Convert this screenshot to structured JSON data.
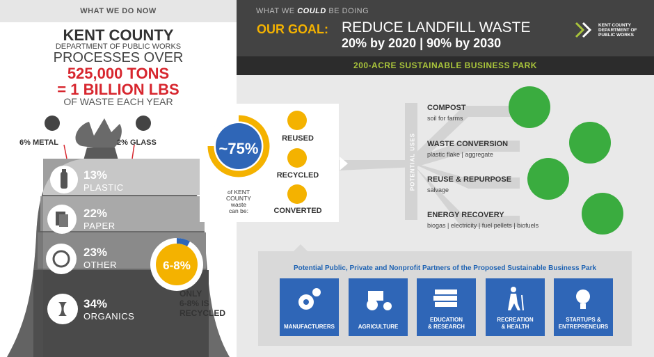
{
  "left": {
    "header": "WHAT WE DO NOW",
    "county": "KENT COUNTY",
    "dept": "DEPARTMENT OF PUBLIC WORKS",
    "processes": "PROCESSES OVER",
    "tons": "525,000 TONS",
    "lbs": "= 1 BILLION LBS",
    "of_waste": "OF WASTE EACH YEAR",
    "metal": "6% METAL",
    "glass": "2% GLASS",
    "rows": [
      {
        "pct": "13%",
        "label": "PLASTIC",
        "icon": "bottle-icon"
      },
      {
        "pct": "22%",
        "label": "PAPER",
        "icon": "paper-icon"
      },
      {
        "pct": "23%",
        "label": "OTHER",
        "icon": "other-icon"
      },
      {
        "pct": "34%",
        "label": "ORGANICS",
        "icon": "apple-core-icon"
      }
    ],
    "recycled_badge": "6-8%",
    "only_line1": "ONLY",
    "only_line2": "6-8% IS",
    "only_line3": "RECYCLED"
  },
  "right": {
    "could_pre": "WHAT WE",
    "could_em": "COULD",
    "could_post": "BE DOING",
    "goal_key": "OUR GOAL:",
    "goal_line1": "REDUCE LANDFILL WASTE",
    "goal_line2": "20% by 2020 | 90% by 2030",
    "park": "200-ACRE SUSTAINABLE BUSINESS PARK",
    "logo_line1": "KENT COUNTY",
    "logo_line2": "DEPARTMENT OF",
    "logo_line3": "PUBLIC WORKS",
    "waste_pct": "~75%",
    "waste_l1": "of KENT",
    "waste_l2": "COUNTY",
    "waste_l3": "waste",
    "waste_l4": "can be:",
    "outcomes": [
      "REUSED",
      "RECYCLED",
      "CONVERTED"
    ],
    "potential_uses": "POTENTIAL USES",
    "uses": [
      {
        "title": "COMPOST",
        "sub": "soil for farms"
      },
      {
        "title": "WASTE CONVERSION",
        "sub": "plastic flake | aggregate"
      },
      {
        "title": "REUSE & REPURPOSE",
        "sub": "salvage"
      },
      {
        "title": "ENERGY RECOVERY",
        "sub": "biogas | electricity | fuel pellets | biofuels"
      }
    ],
    "partners_title": "Potential Public, Private and Nonprofit Partners of the Proposed Sustainable Business Park",
    "partners": [
      {
        "l1": "MANUFACTURERS",
        "l2": ""
      },
      {
        "l1": "AGRICULTURE",
        "l2": ""
      },
      {
        "l1": "EDUCATION",
        "l2": "& RESEARCH"
      },
      {
        "l1": "RECREATION",
        "l2": "& HEALTH"
      },
      {
        "l1": "STARTUPS &",
        "l2": "ENTREPRENEURS"
      }
    ]
  },
  "colors": {
    "accent_yellow": "#f4b200",
    "red": "#d7262e",
    "green": "#3aac3f",
    "blue": "#2f66b7",
    "lime": "#a9c43b"
  },
  "chart_data": {
    "type": "pie",
    "values": [
      75
    ],
    "ylim": [
      0,
      100
    ]
  }
}
